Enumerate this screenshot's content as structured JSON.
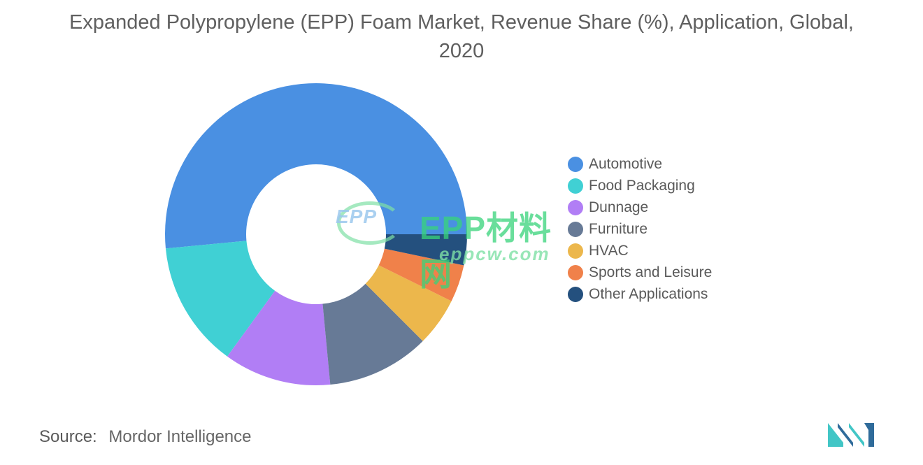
{
  "chart_data": {
    "type": "pie",
    "variant": "donut",
    "title": "Expanded Polypropylene (EPP) Foam Market, Revenue Share (%), Application, Global, 2020",
    "categories": [
      "Automotive",
      "Food Packaging",
      "Dunnage",
      "Furniture",
      "HVAC",
      "Sports and Leisure",
      "Other Applications"
    ],
    "values": [
      51.5,
      13.5,
      11.5,
      11.0,
      5.2,
      4.0,
      3.3
    ],
    "colors": [
      "#4a90e2",
      "#40d0d4",
      "#b17ef5",
      "#677a96",
      "#ecb74c",
      "#f0814a",
      "#24507e"
    ],
    "legend_position": "right"
  },
  "source": {
    "label": "Source:",
    "value": "Mordor Intelligence"
  },
  "watermark": {
    "cloud_text": "EPP",
    "main_text": "EPP材料网",
    "url_text": "eppcw.com"
  },
  "logo": {
    "icon": "mordor-intelligence-logo-icon",
    "colors": [
      "#2f6b9a",
      "#42c6c6"
    ]
  }
}
